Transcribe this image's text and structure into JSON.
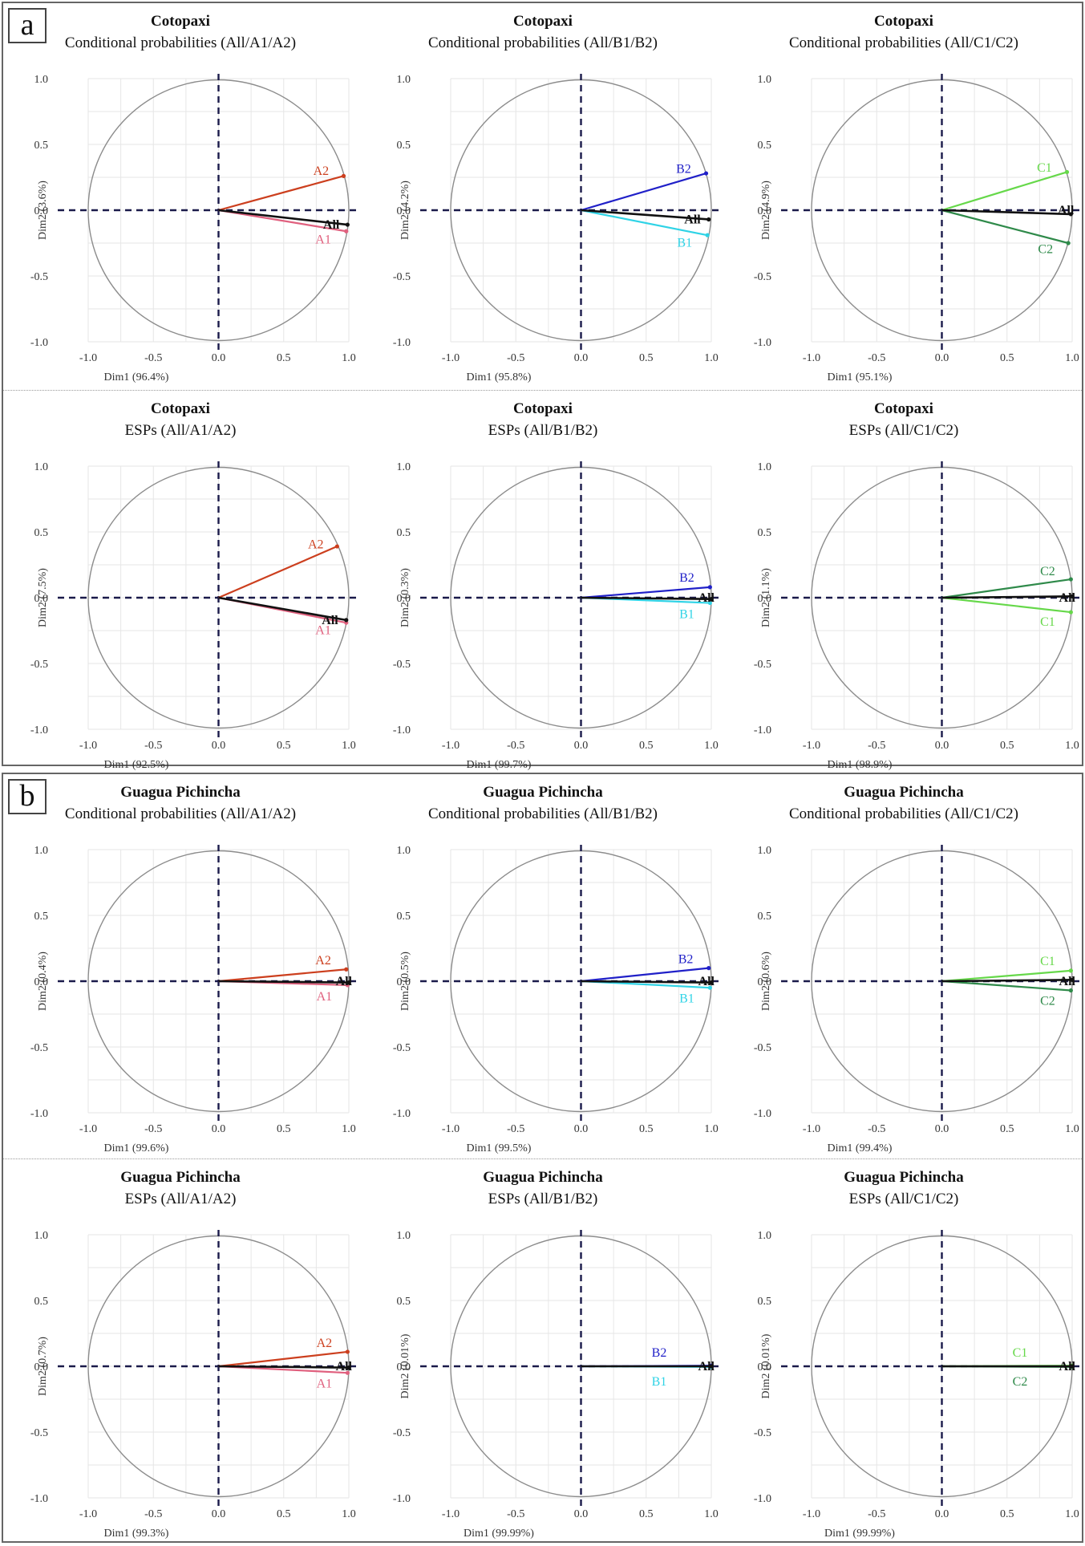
{
  "figure": {
    "sections": [
      {
        "label": "a",
        "site": "Cotopaxi"
      },
      {
        "label": "b",
        "site": "Guagua Pichincha"
      }
    ]
  },
  "colors": {
    "All": "#111111",
    "A1": "#e0607e",
    "A2": "#cc3f1e",
    "B1": "#2fd3e6",
    "B2": "#2020c8",
    "C1": "#66d84a",
    "C2": "#2f8a4a",
    "circle": "#8c8c8c",
    "grid": "#e6e6e6",
    "axis_dash": "#1a1a4a"
  },
  "chart_data": [
    {
      "type": "scatter",
      "title": "Cotopaxi",
      "subtitle": "Conditional probabilities (All/A1/A2)",
      "xlabel": "Dim1 (96.4%)",
      "ylabel": "Dim2 (3.6%)",
      "xlim": [
        -1,
        1
      ],
      "ylim": [
        -1,
        1
      ],
      "xticks": [
        "-1.0",
        "-0.5",
        "0.0",
        "0.5",
        "1.0"
      ],
      "yticks": [
        "1.0",
        "0.5",
        "0.0",
        "-0.5",
        "-1.0"
      ],
      "series": [
        {
          "name": "All",
          "x": 0.99,
          "y": -0.11,
          "color_key": "All"
        },
        {
          "name": "A1",
          "x": 0.98,
          "y": -0.16,
          "color_key": "A1"
        },
        {
          "name": "A2",
          "x": 0.96,
          "y": 0.26,
          "color_key": "A2"
        }
      ]
    },
    {
      "type": "scatter",
      "title": "Cotopaxi",
      "subtitle": "Conditional probabilities (All/B1/B2)",
      "xlabel": "Dim1 (95.8%)",
      "ylabel": "Dim2 (4.2%)",
      "xlim": [
        -1,
        1
      ],
      "ylim": [
        -1,
        1
      ],
      "xticks": [
        "-1.0",
        "-0.5",
        "0.0",
        "0.5",
        "1.0"
      ],
      "yticks": [
        "1.0",
        "0.5",
        "0.0",
        "-0.5",
        "-1.0"
      ],
      "series": [
        {
          "name": "All",
          "x": 0.98,
          "y": -0.07,
          "color_key": "All"
        },
        {
          "name": "B1",
          "x": 0.97,
          "y": -0.19,
          "color_key": "B1"
        },
        {
          "name": "B2",
          "x": 0.96,
          "y": 0.28,
          "color_key": "B2"
        }
      ]
    },
    {
      "type": "scatter",
      "title": "Cotopaxi",
      "subtitle": "Conditional probabilities (All/C1/C2)",
      "xlabel": "Dim1 (95.1%)",
      "ylabel": "Dim2 (4.9%)",
      "xlim": [
        -1,
        1
      ],
      "ylim": [
        -1,
        1
      ],
      "xticks": [
        "-1.0",
        "-0.5",
        "0.0",
        "0.5",
        "1.0"
      ],
      "yticks": [
        "1.0",
        "0.5",
        "0.0",
        "-0.5",
        "-1.0"
      ],
      "series": [
        {
          "name": "All",
          "x": 0.99,
          "y": -0.03,
          "color_key": "All"
        },
        {
          "name": "C1",
          "x": 0.96,
          "y": 0.29,
          "color_key": "C1"
        },
        {
          "name": "C2",
          "x": 0.97,
          "y": -0.25,
          "color_key": "C2"
        }
      ]
    },
    {
      "type": "scatter",
      "title": "Cotopaxi",
      "subtitle": "ESPs (All/A1/A2)",
      "xlabel": "Dim1 (92.5%)",
      "ylabel": "Dim2 (7.5%)",
      "xlim": [
        -1,
        1
      ],
      "ylim": [
        -1,
        1
      ],
      "xticks": [
        "-1.0",
        "-0.5",
        "0.0",
        "0.5",
        "1.0"
      ],
      "yticks": [
        "1.0",
        "0.5",
        "0.0",
        "-0.5",
        "-1.0"
      ],
      "series": [
        {
          "name": "All",
          "x": 0.98,
          "y": -0.17,
          "color_key": "All"
        },
        {
          "name": "A1",
          "x": 0.98,
          "y": -0.19,
          "color_key": "A1"
        },
        {
          "name": "A2",
          "x": 0.91,
          "y": 0.39,
          "color_key": "A2"
        }
      ]
    },
    {
      "type": "scatter",
      "title": "Cotopaxi",
      "subtitle": "ESPs (All/B1/B2)",
      "xlabel": "Dim1 (99.7%)",
      "ylabel": "Dim2 (0.3%)",
      "xlim": [
        -1,
        1
      ],
      "ylim": [
        -1,
        1
      ],
      "xticks": [
        "-1.0",
        "-0.5",
        "0.0",
        "0.5",
        "1.0"
      ],
      "yticks": [
        "1.0",
        "0.5",
        "0.0",
        "-0.5",
        "-1.0"
      ],
      "series": [
        {
          "name": "All",
          "x": 1.0,
          "y": -0.01,
          "color_key": "All"
        },
        {
          "name": "B1",
          "x": 0.99,
          "y": -0.04,
          "color_key": "B1"
        },
        {
          "name": "B2",
          "x": 0.99,
          "y": 0.08,
          "color_key": "B2"
        }
      ]
    },
    {
      "type": "scatter",
      "title": "Cotopaxi",
      "subtitle": "ESPs (All/C1/C2)",
      "xlabel": "Dim1 (98.9%)",
      "ylabel": "Dim2 (1.1%)",
      "xlim": [
        -1,
        1
      ],
      "ylim": [
        -1,
        1
      ],
      "xticks": [
        "-1.0",
        "-0.5",
        "0.0",
        "0.5",
        "1.0"
      ],
      "yticks": [
        "1.0",
        "0.5",
        "0.0",
        "-0.5",
        "-1.0"
      ],
      "series": [
        {
          "name": "All",
          "x": 1.0,
          "y": 0.01,
          "color_key": "All"
        },
        {
          "name": "C1",
          "x": 0.99,
          "y": -0.11,
          "color_key": "C1"
        },
        {
          "name": "C2",
          "x": 0.99,
          "y": 0.14,
          "color_key": "C2"
        }
      ]
    },
    {
      "type": "scatter",
      "title": "Guagua Pichincha",
      "subtitle": "Conditional probabilities (All/A1/A2)",
      "xlabel": "Dim1 (99.6%)",
      "ylabel": "Dim2 (0.4%)",
      "xlim": [
        -1,
        1
      ],
      "ylim": [
        -1,
        1
      ],
      "xticks": [
        "-1.0",
        "-0.5",
        "0.0",
        "0.5",
        "1.0"
      ],
      "yticks": [
        "1.0",
        "0.5",
        "0.0",
        "-0.5",
        "-1.0"
      ],
      "series": [
        {
          "name": "All",
          "x": 1.0,
          "y": -0.01,
          "color_key": "All"
        },
        {
          "name": "A1",
          "x": 0.99,
          "y": -0.03,
          "color_key": "A1"
        },
        {
          "name": "A2",
          "x": 0.98,
          "y": 0.09,
          "color_key": "A2"
        }
      ]
    },
    {
      "type": "scatter",
      "title": "Guagua Pichincha",
      "subtitle": "Conditional probabilities (All/B1/B2)",
      "xlabel": "Dim1 (99.5%)",
      "ylabel": "Dim2 (0.5%)",
      "xlim": [
        -1,
        1
      ],
      "ylim": [
        -1,
        1
      ],
      "xticks": [
        "-1.0",
        "-0.5",
        "0.0",
        "0.5",
        "1.0"
      ],
      "yticks": [
        "1.0",
        "0.5",
        "0.0",
        "-0.5",
        "-1.0"
      ],
      "series": [
        {
          "name": "All",
          "x": 1.0,
          "y": -0.01,
          "color_key": "All"
        },
        {
          "name": "B1",
          "x": 0.99,
          "y": -0.05,
          "color_key": "B1"
        },
        {
          "name": "B2",
          "x": 0.98,
          "y": 0.1,
          "color_key": "B2"
        }
      ]
    },
    {
      "type": "scatter",
      "title": "Guagua Pichincha",
      "subtitle": "Conditional probabilities (All/C1/C2)",
      "xlabel": "Dim1 (99.4%)",
      "ylabel": "Dim2 (0.6%)",
      "xlim": [
        -1,
        1
      ],
      "ylim": [
        -1,
        1
      ],
      "xticks": [
        "-1.0",
        "-0.5",
        "0.0",
        "0.5",
        "1.0"
      ],
      "yticks": [
        "1.0",
        "0.5",
        "0.0",
        "-0.5",
        "-1.0"
      ],
      "series": [
        {
          "name": "All",
          "x": 1.0,
          "y": 0.01,
          "color_key": "All"
        },
        {
          "name": "C1",
          "x": 0.99,
          "y": 0.08,
          "color_key": "C1"
        },
        {
          "name": "C2",
          "x": 0.99,
          "y": -0.07,
          "color_key": "C2"
        }
      ]
    },
    {
      "type": "scatter",
      "title": "Guagua Pichincha",
      "subtitle": "ESPs (All/A1/A2)",
      "xlabel": "Dim1 (99.3%)",
      "ylabel": "Dim2 (0.7%)",
      "xlim": [
        -1,
        1
      ],
      "ylim": [
        -1,
        1
      ],
      "xticks": [
        "-1.0",
        "-0.5",
        "0.0",
        "0.5",
        "1.0"
      ],
      "yticks": [
        "1.0",
        "0.5",
        "0.0",
        "-0.5",
        "-1.0"
      ],
      "series": [
        {
          "name": "All",
          "x": 1.0,
          "y": -0.01,
          "color_key": "All"
        },
        {
          "name": "A1",
          "x": 0.99,
          "y": -0.05,
          "color_key": "A1"
        },
        {
          "name": "A2",
          "x": 0.99,
          "y": 0.11,
          "color_key": "A2"
        }
      ]
    },
    {
      "type": "scatter",
      "title": "Guagua Pichincha",
      "subtitle": "ESPs (All/B1/B2)",
      "xlabel": "Dim1 (99.99%)",
      "ylabel": "Dim2 (0.01%)",
      "xlim": [
        -1,
        1
      ],
      "ylim": [
        -1,
        1
      ],
      "xticks": [
        "-1.0",
        "-0.5",
        "0.0",
        "0.5",
        "1.0"
      ],
      "yticks": [
        "1.0",
        "0.5",
        "0.0",
        "-0.5",
        "-1.0"
      ],
      "series": [
        {
          "name": "All",
          "x": 1.0,
          "y": 0.0,
          "color_key": "All"
        },
        {
          "name": "B1",
          "x": 1.0,
          "y": -0.005,
          "color_key": "B1"
        },
        {
          "name": "B2",
          "x": 1.0,
          "y": 0.005,
          "color_key": "B2"
        }
      ]
    },
    {
      "type": "scatter",
      "title": "Guagua Pichincha",
      "subtitle": "ESPs (All/C1/C2)",
      "xlabel": "Dim1 (99.99%)",
      "ylabel": "Dim2 (0.01%)",
      "xlim": [
        -1,
        1
      ],
      "ylim": [
        -1,
        1
      ],
      "xticks": [
        "-1.0",
        "-0.5",
        "0.0",
        "0.5",
        "1.0"
      ],
      "yticks": [
        "1.0",
        "0.5",
        "0.0",
        "-0.5",
        "-1.0"
      ],
      "series": [
        {
          "name": "All",
          "x": 1.0,
          "y": 0.0,
          "color_key": "All"
        },
        {
          "name": "C1",
          "x": 1.0,
          "y": 0.005,
          "color_key": "C1"
        },
        {
          "name": "C2",
          "x": 1.0,
          "y": -0.005,
          "color_key": "C2"
        }
      ]
    }
  ]
}
